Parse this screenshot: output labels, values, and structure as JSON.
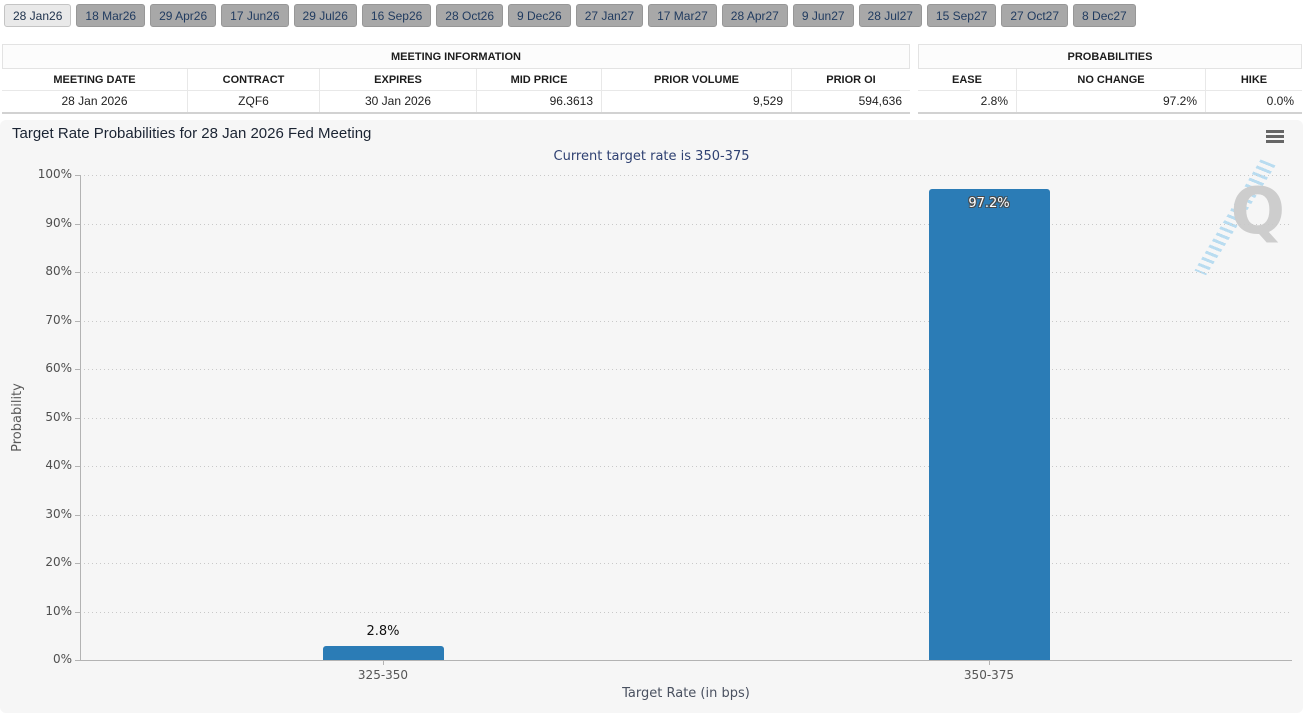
{
  "meeting_tabs": {
    "items": [
      {
        "label": "28 Jan26",
        "active": true
      },
      {
        "label": "18 Mar26",
        "active": false
      },
      {
        "label": "29 Apr26",
        "active": false
      },
      {
        "label": "17 Jun26",
        "active": false
      },
      {
        "label": "29 Jul26",
        "active": false
      },
      {
        "label": "16 Sep26",
        "active": false
      },
      {
        "label": "28 Oct26",
        "active": false
      },
      {
        "label": "9 Dec26",
        "active": false
      },
      {
        "label": "27 Jan27",
        "active": false
      },
      {
        "label": "17 Mar27",
        "active": false
      },
      {
        "label": "28 Apr27",
        "active": false
      },
      {
        "label": "9 Jun27",
        "active": false
      },
      {
        "label": "28 Jul27",
        "active": false
      },
      {
        "label": "15 Sep27",
        "active": false
      },
      {
        "label": "27 Oct27",
        "active": false
      },
      {
        "label": "8 Dec27",
        "active": false
      }
    ]
  },
  "meeting_info_table": {
    "caption": "MEETING INFORMATION",
    "total_width": 908,
    "columns": [
      {
        "header": "MEETING DATE",
        "value": "28 Jan 2026",
        "align": "center",
        "width": 186
      },
      {
        "header": "CONTRACT",
        "value": "ZQF6",
        "align": "center",
        "width": 132
      },
      {
        "header": "EXPIRES",
        "value": "30 Jan 2026",
        "align": "center",
        "width": 157
      },
      {
        "header": "MID PRICE",
        "value": "96.3613",
        "align": "right",
        "width": 125
      },
      {
        "header": "PRIOR VOLUME",
        "value": "9,529",
        "align": "right",
        "width": 190
      },
      {
        "header": "PRIOR OI",
        "value": "594,636",
        "align": "right",
        "width": 118
      }
    ]
  },
  "probabilities_table": {
    "caption": "PROBABILITIES",
    "total_width": 384,
    "columns": [
      {
        "header": "EASE",
        "value": "2.8%",
        "align": "right",
        "width": 99
      },
      {
        "header": "NO CHANGE",
        "value": "97.2%",
        "align": "right",
        "width": 189
      },
      {
        "header": "HIKE",
        "value": "0.0%",
        "align": "right",
        "width": 96
      }
    ]
  },
  "chart_data": {
    "type": "bar",
    "title": "Target Rate Probabilities for 28 Jan 2026 Fed Meeting",
    "subtitle": "Current target rate is 350-375",
    "categories": [
      "325-350",
      "350-375"
    ],
    "values": [
      2.8,
      97.2
    ],
    "value_labels": [
      "2.8%",
      "97.2%"
    ],
    "xlabel": "Target Rate (in bps)",
    "ylabel": "Probability",
    "ylim": [
      0,
      100
    ],
    "ytick_step": 10,
    "ytick_labels": [
      "0%",
      "10%",
      "20%",
      "30%",
      "40%",
      "50%",
      "60%",
      "70%",
      "80%",
      "90%",
      "100%"
    ],
    "bar_color": "#2b7cb6",
    "grid": "dotted horizontal",
    "legend": "none"
  },
  "chart_ui": {
    "menu_icon": "hamburger",
    "watermark_letter": "Q"
  },
  "colors": {
    "bar": "#2b7cb6",
    "chart_background": "#f6f6f6",
    "tab_active_background": "#e9e9e9",
    "tab_inactive_background": "#a8a8a8",
    "tab_text": "#1f3a5f",
    "subtitle_text": "#2f4172"
  }
}
